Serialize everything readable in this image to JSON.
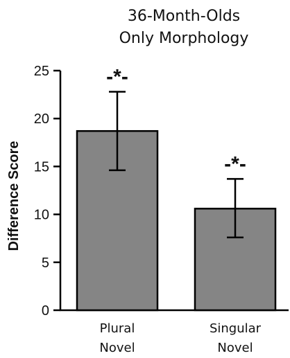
{
  "chart_data": {
    "type": "bar",
    "title_lines": [
      "36-Month-Olds",
      "Only Morphology"
    ],
    "ylabel": "Difference Score",
    "ylim": [
      0,
      25
    ],
    "yticks": [
      0,
      5,
      10,
      15,
      20,
      25
    ],
    "categories": [
      [
        "Plural",
        "Novel"
      ],
      [
        "Singular",
        "Novel"
      ]
    ],
    "values": [
      18.7,
      10.6
    ],
    "error_upper": [
      22.8,
      13.7
    ],
    "error_lower": [
      14.6,
      7.6
    ],
    "significance_labels": [
      "-*-",
      "-*-"
    ],
    "bar_color": "#858585",
    "grid": false,
    "legend": "none"
  }
}
